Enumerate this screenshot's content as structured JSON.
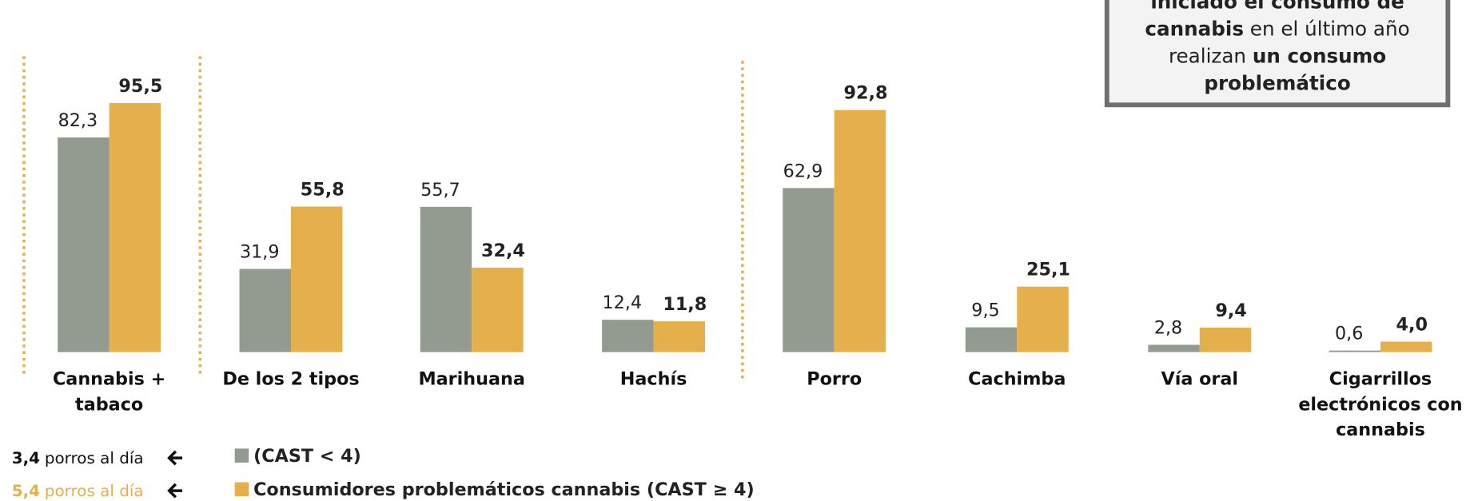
{
  "chart_data": {
    "type": "bar",
    "categories": [
      "Cannabis +\ntabaco",
      "De los 2 tipos",
      "Marihuana",
      "Hachís",
      "Porro",
      "Cachimba",
      "Vía oral",
      "Cigarrillos\nelectrónicos con\ncannabis"
    ],
    "series": [
      {
        "name": "(CAST < 4)",
        "color": "#939b91",
        "values": [
          82.3,
          31.9,
          55.7,
          12.4,
          62.9,
          9.5,
          2.8,
          0.6
        ],
        "value_labels": [
          "82,3",
          "31,9",
          "55,7",
          "12,4",
          "62,9",
          "9,5",
          "2,8",
          "0,6"
        ]
      },
      {
        "name": "Consumidores problemáticos cannabis (CAST ≥ 4)",
        "color": "#e5b04b",
        "values": [
          95.5,
          55.8,
          32.4,
          11.8,
          92.8,
          25.1,
          9.4,
          4.0
        ],
        "value_labels": [
          "95,5",
          "55,8",
          "32,4",
          "11,8",
          "92,8",
          "25,1",
          "9,4",
          "4,0"
        ]
      }
    ],
    "ylim": [
      0,
      100
    ],
    "notes": [
      {
        "value": "3,4",
        "text": "porros al día",
        "color": "#111111"
      },
      {
        "value": "5,4",
        "text": "porros al día",
        "color": "#e5b04b"
      }
    ],
    "annotation": [
      [
        {
          "text": "iniciado el consumo de",
          "bold": true
        }
      ],
      [
        {
          "text": "cannabis",
          "bold": true
        },
        {
          "text": " en el último año",
          "bold": false
        }
      ],
      [
        {
          "text": "realizan ",
          "bold": false
        },
        {
          "text": "un consumo",
          "bold": true
        }
      ],
      [
        {
          "text": "problemático",
          "bold": true
        }
      ]
    ]
  }
}
